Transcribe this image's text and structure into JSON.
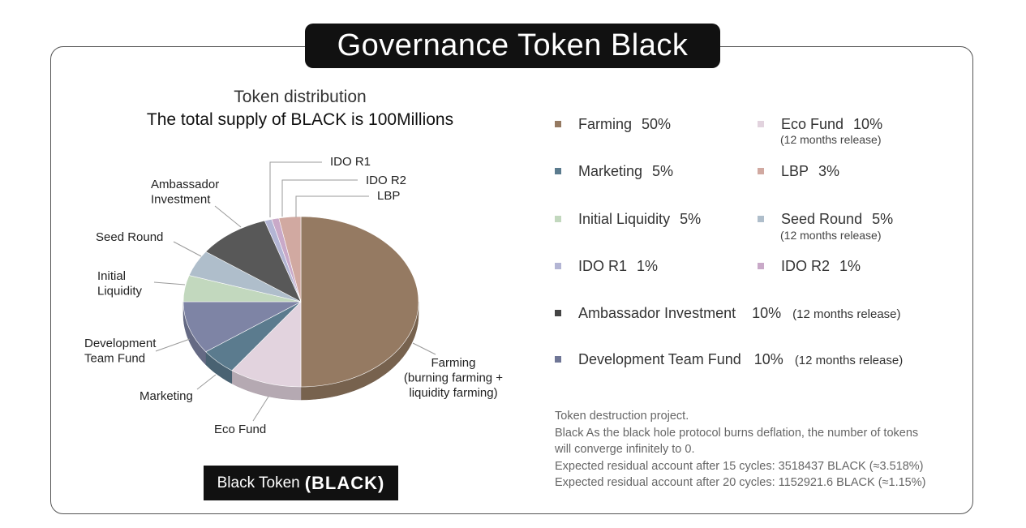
{
  "header": {
    "title": "Governance Token Black"
  },
  "chart_data": {
    "type": "pie",
    "title": "Token distribution",
    "subtitle": "The total supply of BLACK is 100Millions",
    "slices": [
      {
        "label": "Farming",
        "value": 50,
        "color": "#957a62"
      },
      {
        "label": "Eco Fund",
        "value": 10,
        "color": "#e2d3de"
      },
      {
        "label": "Marketing",
        "value": 5,
        "color": "#5b7b8e"
      },
      {
        "label": "Development Team Fund",
        "value": 10,
        "color": "#7e84a5"
      },
      {
        "label": "Initial Liquidity",
        "value": 5,
        "color": "#c2d8be"
      },
      {
        "label": "Seed Round",
        "value": 5,
        "color": "#afbecb"
      },
      {
        "label": "Ambassador Investment",
        "value": 10,
        "color": "#585858"
      },
      {
        "label": "IDO R1",
        "value": 1,
        "color": "#b3b5d4"
      },
      {
        "label": "IDO R2",
        "value": 1,
        "color": "#c9a9c8"
      },
      {
        "label": "LBP",
        "value": 3,
        "color": "#d1a9a1"
      }
    ],
    "pie_labels": [
      {
        "lines": [
          "IDO R1"
        ]
      },
      {
        "lines": [
          "IDO R2"
        ]
      },
      {
        "lines": [
          "LBP"
        ]
      },
      {
        "lines": [
          "Ambassador",
          "Investment"
        ]
      },
      {
        "lines": [
          "Seed Round"
        ]
      },
      {
        "lines": [
          "Initial",
          "Liquidity"
        ]
      },
      {
        "lines": [
          "Development",
          "Team Fund"
        ]
      },
      {
        "lines": [
          "Marketing"
        ]
      },
      {
        "lines": [
          "Eco Fund"
        ]
      },
      {
        "lines": [
          "Farming",
          "(burning farming +",
          "liquidity farming)"
        ]
      }
    ]
  },
  "token_label": {
    "prefix": "Black Token",
    "ticker": "(BLACK)"
  },
  "legend": [
    {
      "name": "Farming",
      "pct": "50%",
      "color": "#957a62",
      "note": ""
    },
    {
      "name": "Eco Fund",
      "pct": "10%",
      "color": "#e2d3de",
      "note": "(12 months release)"
    },
    {
      "name": "Marketing",
      "pct": "5%",
      "color": "#5b7b8e",
      "note": ""
    },
    {
      "name": "LBP",
      "pct": "3%",
      "color": "#d1a9a1",
      "note": ""
    },
    {
      "name": "Initial Liquidity",
      "pct": "5%",
      "color": "#c2d8be",
      "note": ""
    },
    {
      "name": "Seed Round",
      "pct": "5%",
      "color": "#afbecb",
      "note": "(12 months release)"
    },
    {
      "name": "IDO R1",
      "pct": "1%",
      "color": "#b3b5d4",
      "note": ""
    },
    {
      "name": "IDO R2",
      "pct": "1%",
      "color": "#c9a9c8",
      "note": ""
    },
    {
      "name": "Ambassador Investment",
      "pct": "10%",
      "color": "#444444",
      "note": "(12 months release)"
    },
    {
      "name": "Development Team Fund",
      "pct": "10%",
      "color": "#6f7696",
      "note": "(12 months release)"
    }
  ],
  "footer": {
    "lines": [
      "Token destruction project.",
      "Black As the black hole protocol burns deflation, the number of tokens",
      "will converge infinitely to 0.",
      "Expected residual account after 15 cycles: 3518437 BLACK (≈3.518%)",
      "Expected residual account after 20 cycles: 1152921.6 BLACK (≈1.15%)"
    ]
  }
}
